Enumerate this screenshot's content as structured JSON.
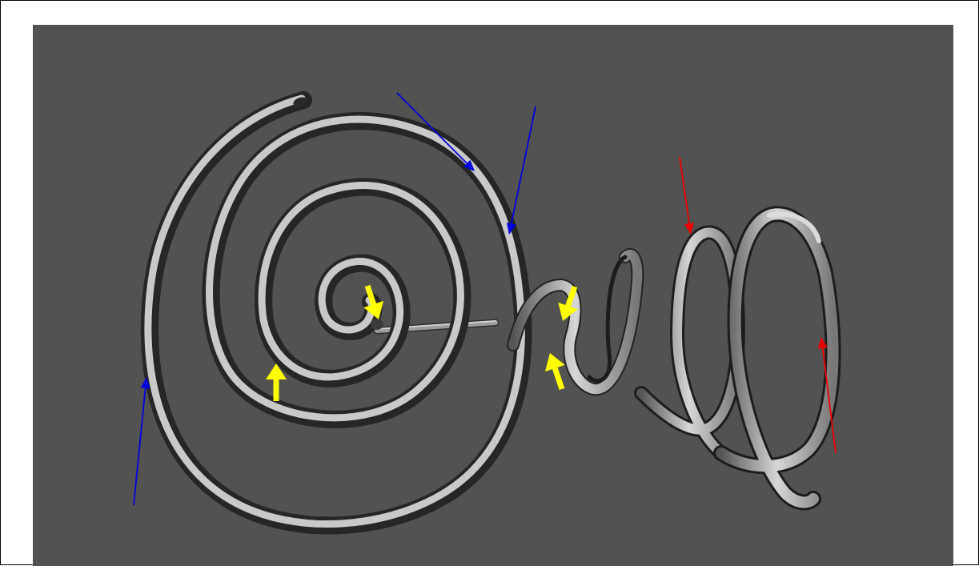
{
  "colors": {
    "background": "#ffffff",
    "border": "#000000",
    "viewport": "#525252",
    "tube_light": "#d2d2d2",
    "tube_mid": "#9a9a9a",
    "tube_dark": "#303030",
    "arrow_blue": "#0000dd",
    "arrow_red": "#ee0000",
    "arrow_yellow": "#ffff00"
  },
  "figure": {
    "objects": [
      {
        "kind": "tube",
        "shape": "planar-spiral",
        "direction": "clockwise"
      },
      {
        "kind": "straight-rod",
        "connects": "spiral-center-to-helix"
      },
      {
        "kind": "ribbon",
        "shape": "helix",
        "turns": 3
      }
    ],
    "annotations": [
      {
        "group": "blue-arrows",
        "color": "#0000dd",
        "count": 3,
        "style": "thin"
      },
      {
        "group": "red-arrows",
        "color": "#ee0000",
        "count": 2,
        "style": "thin"
      },
      {
        "group": "yellow-arrows",
        "color": "#ffff00",
        "count": 4,
        "style": "thick"
      }
    ]
  }
}
